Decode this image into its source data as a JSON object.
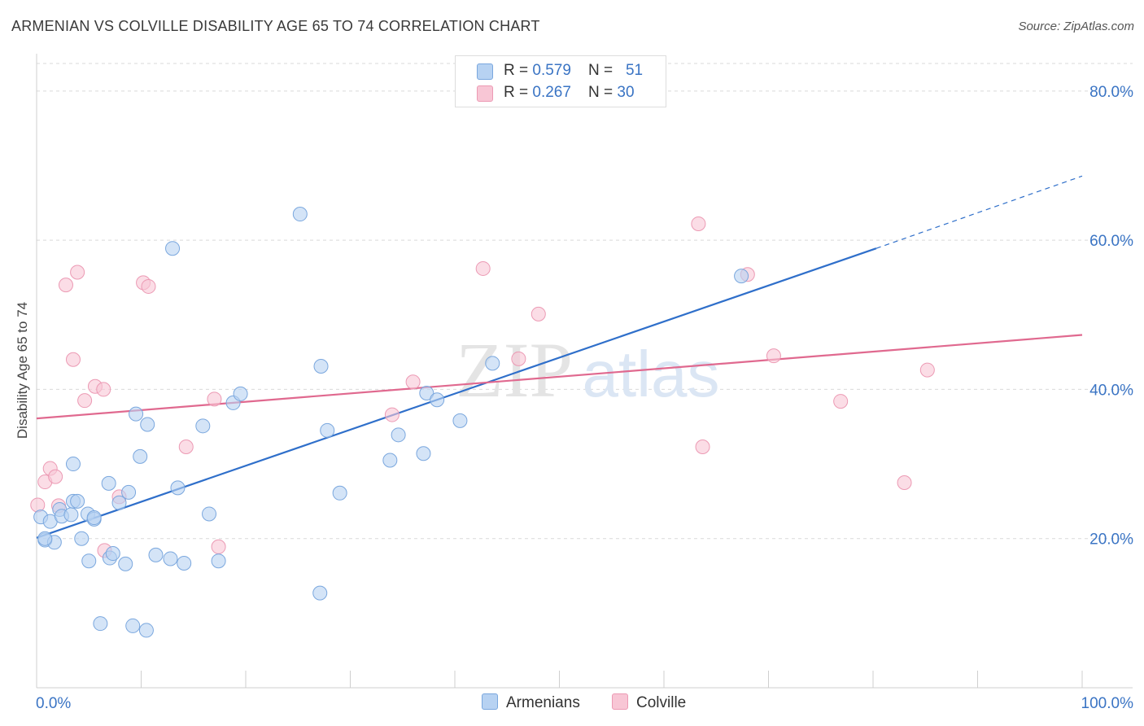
{
  "title": "ARMENIAN VS COLVILLE DISABILITY AGE 65 TO 74 CORRELATION CHART",
  "source": "Source: ZipAtlas.com",
  "watermark": {
    "zip": "ZIP",
    "atlas": "atlas"
  },
  "legend": {
    "armenians": {
      "r_label": "R = ",
      "r_value": "0.579",
      "n_label": "N = ",
      "n_value": "51"
    },
    "colville": {
      "r_label": "R = ",
      "r_value": "0.267",
      "n_label": "N = ",
      "n_value": "30"
    }
  },
  "bottom_legend": {
    "armenians": "Armenians",
    "colville": "Colville"
  },
  "colors": {
    "armenians_fill": "#b7d2f2",
    "armenians_stroke": "#7aa7de",
    "armenians_line": "#2f6fca",
    "colville_fill": "#f8c6d5",
    "colville_stroke": "#ec9ab4",
    "colville_line": "#e0698f",
    "axis_value": "#3a74c4",
    "grid": "#d9d9d9"
  },
  "chart_data": {
    "type": "scatter",
    "title": "ARMENIAN VS COLVILLE DISABILITY AGE 65 TO 74 CORRELATION CHART",
    "xlabel": "",
    "ylabel": "Disability Age 65 to 74",
    "xlim": [
      0,
      100
    ],
    "ylim": [
      0,
      85
    ],
    "x_tick_labels": [
      {
        "value": 0,
        "label": "0.0%"
      },
      {
        "value": 100,
        "label": "100.0%"
      }
    ],
    "x_minor_ticks": [
      0,
      10,
      20,
      30,
      40,
      50,
      60,
      70,
      80,
      90,
      100
    ],
    "y_ticks": [
      {
        "value": 20,
        "label": "20.0%"
      },
      {
        "value": 40,
        "label": "40.0%"
      },
      {
        "value": 60,
        "label": "60.0%"
      },
      {
        "value": 80,
        "label": "80.0%"
      }
    ],
    "series": [
      {
        "name": "Armenians",
        "r": 0.579,
        "n": 51,
        "trend": {
          "x0": 0,
          "y0": 20.1,
          "x1": 80.3,
          "y1": 58.9,
          "dash_to_x": 100,
          "dash_to_y": 68.6
        },
        "points": [
          [
            0.4,
            22.9
          ],
          [
            1.3,
            22.3
          ],
          [
            0.8,
            19.8
          ],
          [
            1.7,
            19.5
          ],
          [
            2.2,
            23.9
          ],
          [
            2.4,
            23.0
          ],
          [
            3.3,
            23.2
          ],
          [
            3.5,
            25.0
          ],
          [
            3.9,
            25.0
          ],
          [
            4.3,
            20.0
          ],
          [
            3.5,
            30.0
          ],
          [
            4.9,
            23.3
          ],
          [
            5.5,
            22.6
          ],
          [
            5.5,
            22.8
          ],
          [
            5.0,
            17.0
          ],
          [
            6.9,
            27.4
          ],
          [
            7.0,
            17.4
          ],
          [
            7.3,
            18.0
          ],
          [
            7.9,
            24.8
          ],
          [
            8.5,
            16.6
          ],
          [
            8.8,
            26.2
          ],
          [
            9.5,
            36.7
          ],
          [
            9.9,
            31.0
          ],
          [
            10.6,
            35.3
          ],
          [
            11.4,
            17.8
          ],
          [
            12.8,
            17.3
          ],
          [
            14.1,
            16.7
          ],
          [
            13.0,
            58.9
          ],
          [
            13.5,
            26.8
          ],
          [
            15.9,
            35.1
          ],
          [
            16.5,
            23.3
          ],
          [
            17.4,
            17.0
          ],
          [
            18.8,
            38.2
          ],
          [
            19.5,
            39.4
          ],
          [
            25.2,
            63.5
          ],
          [
            27.2,
            43.1
          ],
          [
            27.8,
            34.5
          ],
          [
            29.0,
            26.1
          ],
          [
            27.1,
            12.7
          ],
          [
            6.1,
            8.6
          ],
          [
            9.2,
            8.3
          ],
          [
            10.5,
            7.7
          ],
          [
            33.8,
            30.5
          ],
          [
            34.6,
            33.9
          ],
          [
            37.0,
            31.4
          ],
          [
            37.3,
            39.5
          ],
          [
            38.3,
            38.6
          ],
          [
            40.5,
            35.8
          ],
          [
            43.6,
            43.5
          ],
          [
            67.4,
            55.2
          ],
          [
            0.8,
            20.0
          ]
        ]
      },
      {
        "name": "Colville",
        "r": 0.267,
        "n": 30,
        "trend": {
          "x0": 0,
          "y0": 36.1,
          "x1": 100,
          "y1": 47.3
        },
        "points": [
          [
            0.1,
            24.5
          ],
          [
            0.8,
            27.6
          ],
          [
            1.3,
            29.4
          ],
          [
            1.8,
            28.3
          ],
          [
            2.1,
            24.4
          ],
          [
            2.8,
            54.0
          ],
          [
            3.5,
            44.0
          ],
          [
            3.9,
            55.7
          ],
          [
            4.6,
            38.5
          ],
          [
            5.6,
            40.4
          ],
          [
            6.4,
            40.0
          ],
          [
            6.5,
            18.4
          ],
          [
            7.9,
            25.6
          ],
          [
            10.2,
            54.3
          ],
          [
            10.7,
            53.8
          ],
          [
            14.3,
            32.3
          ],
          [
            17.0,
            38.7
          ],
          [
            17.4,
            18.9
          ],
          [
            34.0,
            36.6
          ],
          [
            36.0,
            41.0
          ],
          [
            42.7,
            56.2
          ],
          [
            46.1,
            44.1
          ],
          [
            48.0,
            50.1
          ],
          [
            63.7,
            32.3
          ],
          [
            63.3,
            62.2
          ],
          [
            68.0,
            55.4
          ],
          [
            70.5,
            44.5
          ],
          [
            76.9,
            38.4
          ],
          [
            83.0,
            27.5
          ],
          [
            85.2,
            42.6
          ]
        ]
      }
    ]
  }
}
